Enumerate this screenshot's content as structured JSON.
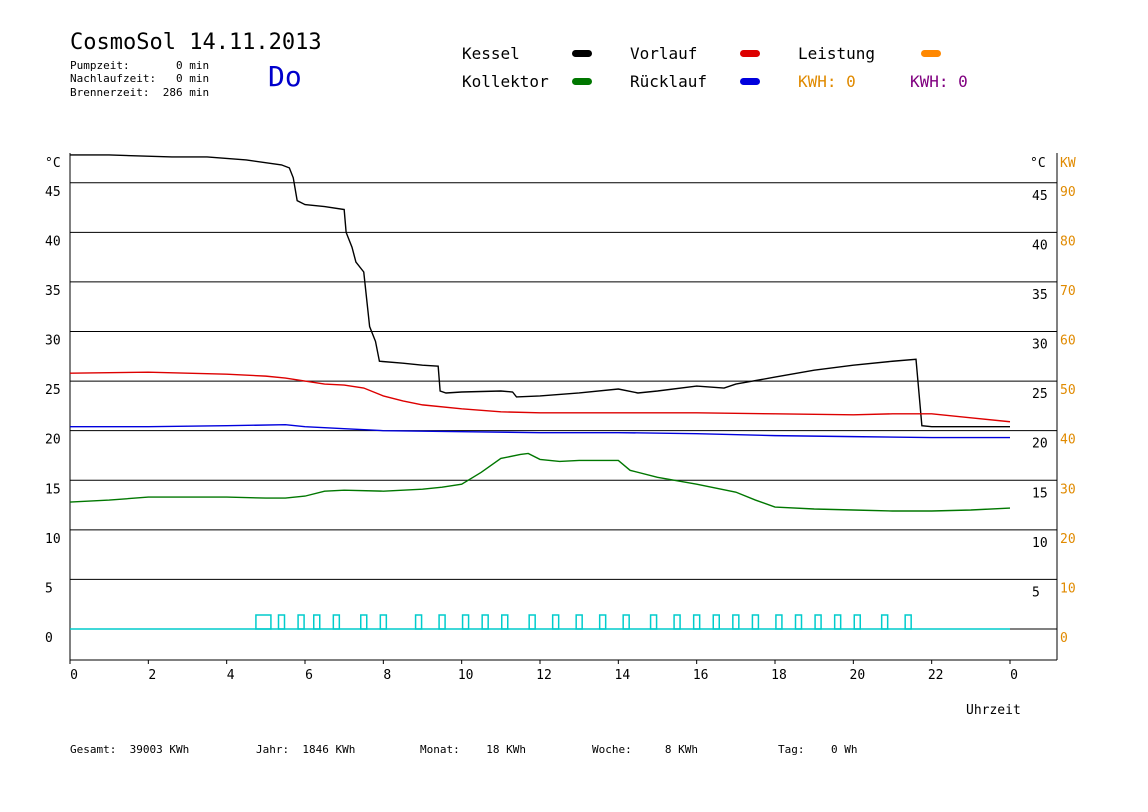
{
  "header": {
    "title": "CosmoSol 14.11.2013",
    "day": "Do",
    "pumpzeit": "Pumpzeit:       0 min",
    "nachlaufzeit": "Nachlaufzeit:   0 min",
    "brennerzeit": "Brennerzeit:  286 min"
  },
  "legend": {
    "kessel": "Kessel",
    "vorlauf": "Vorlauf",
    "leistung": "Leistung",
    "kollektor": "Kollektor",
    "ruecklauf": "Rücklauf",
    "kwh1": "KWH: 0",
    "kwh2": "KWH: 0"
  },
  "colors": {
    "kessel": "#000000",
    "vorlauf": "#dd0000",
    "leistung": "#ff8800",
    "kollektor": "#007700",
    "ruecklauf": "#0000dd",
    "kwh1": "#e08a00",
    "kwh2": "#800080",
    "pump": "#00cccc",
    "kw_axis": "#e08a00"
  },
  "footer": {
    "gesamt": "Gesamt:  39003 KWh",
    "jahr": "Jahr:  1846 KWh",
    "monat": "Monat:    18 KWh",
    "woche": "Woche:     8 KWh",
    "tag": "Tag:    0 Wh"
  },
  "chart_data": {
    "type": "line",
    "xlabel": "Uhrzeit",
    "ylabel_left": "°C",
    "ylabel_right_temp": "°C",
    "ylabel_right_power": "KW",
    "xlim": [
      0,
      24
    ],
    "ylim": [
      0,
      48
    ],
    "x_ticks": [
      "0",
      "2",
      "4",
      "6",
      "8",
      "10",
      "12",
      "14",
      "16",
      "18",
      "20",
      "22",
      "0"
    ],
    "y_ticks_left": [
      "0",
      "5",
      "10",
      "15",
      "20",
      "25",
      "30",
      "35",
      "40",
      "45"
    ],
    "y_ticks_right_temp": [
      "5",
      "10",
      "15",
      "20",
      "25",
      "30",
      "35",
      "40",
      "45"
    ],
    "y_ticks_right_kw": [
      "0",
      "10",
      "20",
      "30",
      "40",
      "50",
      "60",
      "70",
      "80",
      "90"
    ],
    "grid": true,
    "series": [
      {
        "name": "Kessel",
        "color": "#000000",
        "x": [
          0,
          1,
          2.6,
          3.5,
          4.5,
          5.4,
          5.6,
          5.7,
          5.8,
          6.0,
          6.5,
          7.0,
          7.05,
          7.2,
          7.3,
          7.5,
          7.65,
          7.8,
          7.9,
          8.5,
          9.0,
          9.4,
          9.45,
          9.6,
          10,
          11,
          11.3,
          11.4,
          12,
          13,
          14,
          14.5,
          15,
          16,
          16.7,
          17,
          18,
          19,
          20,
          21,
          21.6,
          21.75,
          22,
          23,
          24
        ],
        "y": [
          47.8,
          47.8,
          47.6,
          47.6,
          47.3,
          46.8,
          46.5,
          45.5,
          43.2,
          42.8,
          42.6,
          42.3,
          40,
          38.5,
          37,
          36,
          30.5,
          29,
          27,
          26.8,
          26.6,
          26.5,
          24,
          23.8,
          23.9,
          24.0,
          23.9,
          23.4,
          23.5,
          23.8,
          24.2,
          23.8,
          24.0,
          24.5,
          24.3,
          24.7,
          25.4,
          26.1,
          26.6,
          27.0,
          27.2,
          20.5,
          20.4,
          20.4,
          20.4
        ]
      },
      {
        "name": "Vorlauf",
        "color": "#dd0000",
        "x": [
          0,
          2,
          4,
          5,
          5.5,
          6,
          6.5,
          7,
          7.5,
          8,
          8.5,
          9,
          10,
          11,
          12,
          14,
          16,
          18,
          20,
          21,
          22,
          23,
          24
        ],
        "y": [
          25.8,
          25.9,
          25.7,
          25.5,
          25.3,
          25.0,
          24.7,
          24.6,
          24.3,
          23.5,
          23.0,
          22.6,
          22.2,
          21.9,
          21.8,
          21.8,
          21.8,
          21.7,
          21.6,
          21.7,
          21.7,
          21.3,
          20.9
        ]
      },
      {
        "name": "Rücklauf",
        "color": "#0000dd",
        "x": [
          0,
          2,
          4,
          5.5,
          6,
          7,
          8,
          10,
          12,
          14,
          16,
          18,
          20,
          22,
          24
        ],
        "y": [
          20.4,
          20.4,
          20.5,
          20.6,
          20.4,
          20.2,
          20.0,
          19.9,
          19.8,
          19.8,
          19.7,
          19.5,
          19.4,
          19.3,
          19.3
        ]
      },
      {
        "name": "Kollektor",
        "color": "#007700",
        "x": [
          0,
          1,
          2,
          3,
          4,
          5,
          5.5,
          6,
          6.5,
          7,
          8,
          9,
          9.5,
          10,
          10.5,
          11,
          11.5,
          11.7,
          12,
          12.5,
          13,
          14,
          14.3,
          15,
          16,
          17,
          17.5,
          18,
          19,
          20,
          21,
          22,
          23,
          24
        ],
        "y": [
          12.8,
          13.0,
          13.3,
          13.3,
          13.3,
          13.2,
          13.2,
          13.4,
          13.9,
          14.0,
          13.9,
          14.1,
          14.3,
          14.6,
          15.8,
          17.2,
          17.6,
          17.7,
          17.1,
          16.9,
          17.0,
          17.0,
          16.0,
          15.3,
          14.6,
          13.8,
          13.0,
          12.3,
          12.1,
          12.0,
          11.9,
          11.9,
          12.0,
          12.2
        ]
      }
    ],
    "pump_cycles_hours": [
      4.9,
      5.4,
      5.9,
      6.3,
      6.8,
      7.5,
      8.0,
      8.9,
      9.5,
      10.1,
      10.6,
      11.1,
      11.8,
      12.4,
      13.0,
      13.6,
      14.2,
      14.9,
      15.5,
      16.0,
      16.5,
      17.0,
      17.5,
      18.1,
      18.6,
      19.1,
      19.6,
      20.1,
      20.8,
      21.4
    ]
  }
}
